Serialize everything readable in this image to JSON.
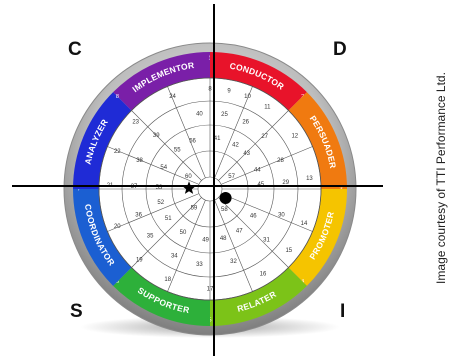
{
  "quadrants": {
    "top_left": "C",
    "top_right": "D",
    "bottom_left": "S",
    "bottom_right": "I"
  },
  "credit": "Image courtesy of  TTI Performance Ltd.",
  "styles": [
    {
      "name": "IMPLEMENTOR",
      "color": "#7a1fa8"
    },
    {
      "name": "CONDUCTOR",
      "color": "#e8132a"
    },
    {
      "name": "PERSUADER",
      "color": "#f07a10"
    },
    {
      "name": "PROMOTER",
      "color": "#f5c400"
    },
    {
      "name": "RELATER",
      "color": "#7cc318"
    },
    {
      "name": "SUPPORTER",
      "color": "#2db03a"
    },
    {
      "name": "COORDINATOR",
      "color": "#1b5fd2"
    },
    {
      "name": "ANALYZER",
      "color": "#1f2bd6"
    }
  ],
  "boundary_numbers": [
    "1",
    "2",
    "3",
    "4",
    "5",
    "6",
    "7",
    "8"
  ],
  "cells": [
    {
      "n": "8",
      "r": 4,
      "a": 90
    },
    {
      "n": "24",
      "r": 4,
      "a": 112
    },
    {
      "n": "40",
      "r": 3,
      "a": 98
    },
    {
      "n": "56",
      "r": 2,
      "a": 110
    },
    {
      "n": "41",
      "r": 2,
      "a": 82
    },
    {
      "n": "9",
      "r": 4,
      "a": 79
    },
    {
      "n": "10",
      "r": 4,
      "a": 68
    },
    {
      "n": "26",
      "r": 3,
      "a": 62
    },
    {
      "n": "25",
      "r": 3,
      "a": 79
    },
    {
      "n": "42",
      "r": 2,
      "a": 60
    },
    {
      "n": "57",
      "r": 1,
      "a": 30
    },
    {
      "n": "43",
      "r": 2,
      "a": 44
    },
    {
      "n": "11",
      "r": 4,
      "a": 55
    },
    {
      "n": "27",
      "r": 3,
      "a": 44
    },
    {
      "n": "12",
      "r": 4,
      "a": 32
    },
    {
      "n": "28",
      "r": 3,
      "a": 22
    },
    {
      "n": "44",
      "r": 2,
      "a": 22
    },
    {
      "n": "13",
      "r": 4,
      "a": 6
    },
    {
      "n": "29",
      "r": 3,
      "a": 5
    },
    {
      "n": "45",
      "r": 2,
      "a": 5
    },
    {
      "n": "14",
      "r": 4,
      "a": -20
    },
    {
      "n": "30",
      "r": 3,
      "a": -20
    },
    {
      "n": "46",
      "r": 2,
      "a": -32
    },
    {
      "n": "58",
      "r": 1,
      "a": -55
    },
    {
      "n": "15",
      "r": 4,
      "a": -38
    },
    {
      "n": "31",
      "r": 3,
      "a": -42
    },
    {
      "n": "47",
      "r": 2,
      "a": -55
    },
    {
      "n": "16",
      "r": 4,
      "a": -58
    },
    {
      "n": "32",
      "r": 3,
      "a": -72
    },
    {
      "n": "48",
      "r": 2,
      "a": -75
    },
    {
      "n": "17",
      "r": 4,
      "a": -90
    },
    {
      "n": "33",
      "r": 3,
      "a": -98
    },
    {
      "n": "49",
      "r": 2,
      "a": -95
    },
    {
      "n": "18",
      "r": 4,
      "a": -115
    },
    {
      "n": "34",
      "r": 3,
      "a": -118
    },
    {
      "n": "50",
      "r": 2,
      "a": -122
    },
    {
      "n": "19",
      "r": 4,
      "a": -135
    },
    {
      "n": "35",
      "r": 3,
      "a": -142
    },
    {
      "n": "51",
      "r": 2,
      "a": -145
    },
    {
      "n": "20",
      "r": 4,
      "a": -158
    },
    {
      "n": "36",
      "r": 3,
      "a": -160
    },
    {
      "n": "52",
      "r": 2,
      "a": -165
    },
    {
      "n": "21",
      "r": 4,
      "a": 178
    },
    {
      "n": "37",
      "r": 3,
      "a": 178
    },
    {
      "n": "53",
      "r": 2,
      "a": 178
    },
    {
      "n": "22",
      "r": 4,
      "a": 158
    },
    {
      "n": "38",
      "r": 3,
      "a": 158
    },
    {
      "n": "54",
      "r": 2,
      "a": 155
    },
    {
      "n": "23",
      "r": 4,
      "a": 138
    },
    {
      "n": "39",
      "r": 3,
      "a": 135
    },
    {
      "n": "55",
      "r": 2,
      "a": 130
    },
    {
      "n": "60",
      "r": 1,
      "a": 150
    },
    {
      "n": "59",
      "r": 1,
      "a": -130
    }
  ],
  "markers": [
    {
      "name": "star-marker",
      "shape": "star",
      "r": 1,
      "a": 178
    },
    {
      "name": "dot-marker",
      "shape": "dot",
      "r": 0,
      "a": -30
    }
  ]
}
